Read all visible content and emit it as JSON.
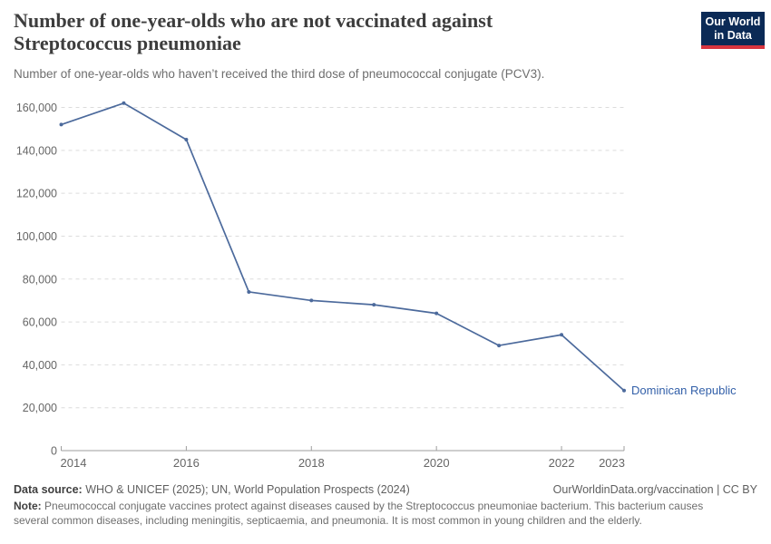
{
  "header": {
    "title_line1": "Number of one-year-olds who are not vaccinated against",
    "title_line2": "Streptococcus pneumoniae",
    "subtitle": "Number of one-year-olds who haven’t received the third dose of pneumococcal conjugate (PCV3).",
    "logo": {
      "line1": "Our World",
      "line2": "in Data",
      "bg_color": "#0b2a56",
      "accent_color": "#d8353f"
    }
  },
  "chart_data": {
    "type": "line",
    "title": "Number of one-year-olds who are not vaccinated against Streptococcus pneumoniae",
    "subtitle": "Number of one-year-olds who haven’t received the third dose of pneumococcal conjugate (PCV3).",
    "x": [
      2014,
      2015,
      2016,
      2017,
      2018,
      2019,
      2020,
      2021,
      2022,
      2023
    ],
    "series": [
      {
        "name": "Dominican Republic",
        "color": "#4C6A9C",
        "label_color": "#3360A9",
        "values": [
          152000,
          162000,
          145000,
          74000,
          70000,
          68000,
          64000,
          49000,
          54000,
          28000
        ]
      }
    ],
    "x_ticks": [
      2014,
      2016,
      2018,
      2020,
      2022,
      2023
    ],
    "y_ticks": [
      0,
      20000,
      40000,
      60000,
      80000,
      100000,
      120000,
      140000,
      160000
    ],
    "xlim": [
      2014,
      2023
    ],
    "ylim": [
      0,
      160000
    ],
    "grid": "horizontal-dashed",
    "legend_position": "end-of-line",
    "marker": "dot"
  },
  "colors": {
    "grid": "#dcdcdc",
    "axis": "#9e9e9e",
    "tick_text": "#666666"
  },
  "footer": {
    "data_source_label": "Data source:",
    "data_source": "WHO & UNICEF (2025); UN, World Population Prospects (2024)",
    "link": "OurWorldinData.org/vaccination | CC BY",
    "note_label": "Note:",
    "note": "Pneumococcal conjugate vaccines protect against diseases caused by the Streptococcus pneumoniae bacterium. This bacterium causes several common diseases, including meningitis, septicaemia, and pneumonia. It is most common in young children and the elderly."
  }
}
